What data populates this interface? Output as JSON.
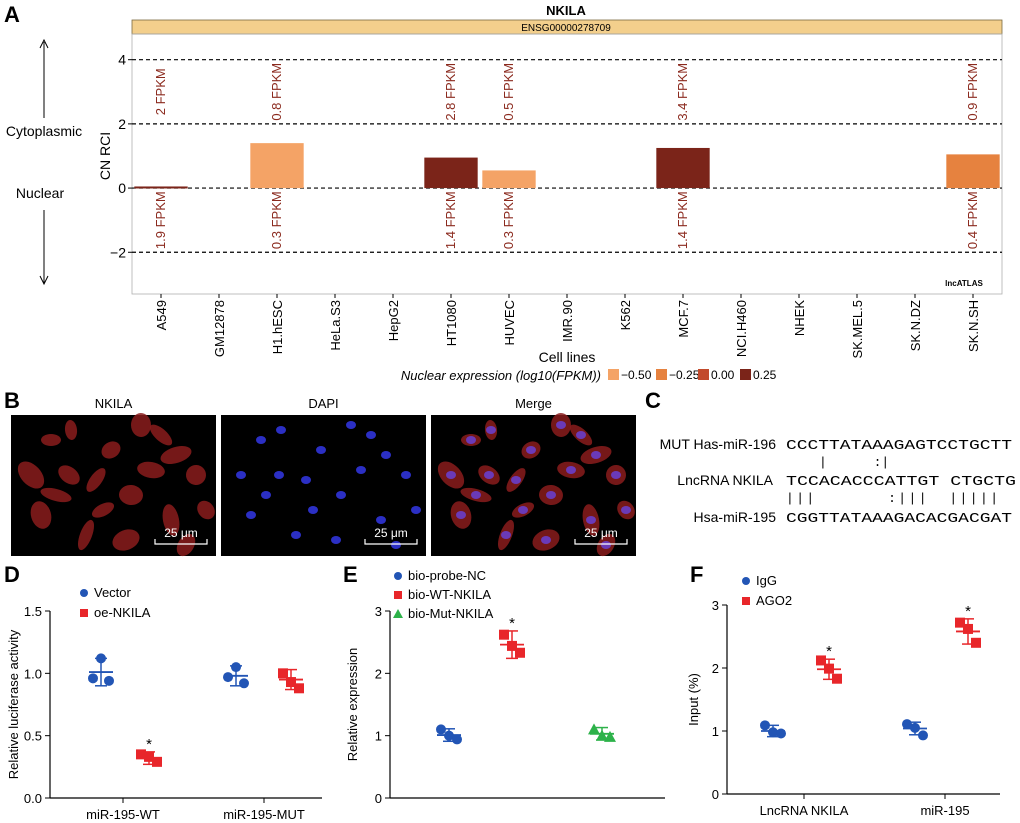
{
  "panels": {
    "a": "A",
    "b": "B",
    "c": "C",
    "d": "D",
    "e": "E",
    "f": "F"
  },
  "panel_a": {
    "title": "NKILA",
    "ensembl": "ENSG00000278709",
    "side_top": "Cytoplasmic",
    "side_bottom": "Nuclear",
    "watermark": "lncATLAS",
    "legend_title": "Nuclear expression (log10(FPKM))",
    "legend": [
      {
        "label": "−0.50",
        "color": "#f4a366"
      },
      {
        "label": "−0.25",
        "color": "#e6823f"
      },
      {
        "label": "0.00",
        "color": "#c24a2c"
      },
      {
        "label": "0.25",
        "color": "#7b2419"
      }
    ]
  },
  "panel_b": {
    "labels": [
      "NKILA",
      "DAPI",
      "Merge"
    ],
    "scalebar": "25 μm"
  },
  "panel_c": {
    "rows": [
      {
        "label": "MUT Has-miR-196",
        "seq": "CCCTTATAAAGAGTCCTGCTT"
      },
      {
        "label": "LncRNA NKILA",
        "seq": "TCCACACCCATTGT CTGCTG"
      },
      {
        "label": "Hsa-miR-195",
        "seq": "CGGTTATAAAGACACGACGAT"
      }
    ],
    "pair_top": "|      :|",
    "pair_bottom": "|||       :|||  |||||"
  },
  "chart_data": [
    {
      "id": "A",
      "type": "bar",
      "title": "NKILA",
      "subtitle": "ENSG00000278709",
      "xlabel": "Cell lines",
      "ylabel": "CN RCI",
      "ylim": [
        -3.3,
        4.8
      ],
      "yticks": [
        -2,
        0,
        2,
        4
      ],
      "gridlines": [
        -2,
        0,
        2,
        4
      ],
      "categories": [
        "A549",
        "GM12878",
        "H1.hESC",
        "HeLa.S3",
        "HepG2",
        "HT1080",
        "HUVEC",
        "IMR.90",
        "K562",
        "MCF.7",
        "NCI.H460",
        "NHEK",
        "SK.MEL.5",
        "SK.N.DZ",
        "SK.N.SH"
      ],
      "values": [
        0.05,
        null,
        1.4,
        null,
        null,
        0.95,
        0.55,
        null,
        null,
        1.25,
        null,
        null,
        null,
        null,
        1.05
      ],
      "colors": [
        "#7b2419",
        null,
        "#f4a366",
        null,
        null,
        "#7b2419",
        "#f4a366",
        null,
        null,
        "#7b2419",
        null,
        null,
        null,
        null,
        "#e6823f"
      ],
      "cyto_labels": [
        "2 FPKM",
        null,
        "0.8 FPKM",
        null,
        null,
        "2.8 FPKM",
        "0.5 FPKM",
        null,
        null,
        "3.4 FPKM",
        null,
        null,
        null,
        null,
        "0.9 FPKM"
      ],
      "nuc_labels": [
        "1.9 FPKM",
        null,
        "0.3 FPKM",
        null,
        null,
        "1.4 FPKM",
        "0.3 FPKM",
        null,
        null,
        "1.4 FPKM",
        null,
        null,
        null,
        null,
        "0.4 FPKM"
      ]
    },
    {
      "id": "D",
      "type": "scatter",
      "ylabel": "Relative luciferase activity",
      "ylim": [
        0,
        1.5
      ],
      "yticks": [
        "0.0",
        "0.5",
        "1.0",
        "1.5"
      ],
      "categories": [
        "miR-195-WT",
        "miR-195-MUT"
      ],
      "series": [
        {
          "name": "Vector",
          "marker": "circle",
          "color": "#2255b5",
          "points": [
            [
              0.96,
              1.12,
              0.94
            ],
            [
              0.97,
              1.05,
              0.92
            ]
          ],
          "mean": [
            1.01,
            0.98
          ],
          "sd": [
            0.11,
            0.08
          ]
        },
        {
          "name": "oe-NKILA",
          "marker": "square",
          "color": "#e8262a",
          "points": [
            [
              0.35,
              0.33,
              0.29
            ],
            [
              1.0,
              0.93,
              0.88
            ]
          ],
          "mean": [
            0.32,
            0.95
          ],
          "sd": [
            0.05,
            0.08
          ]
        }
      ],
      "stars": [
        {
          "series": 1,
          "cat": 0,
          "label": "*"
        }
      ]
    },
    {
      "id": "E",
      "type": "scatter",
      "ylabel": "Relative expression",
      "ylim": [
        0,
        3
      ],
      "yticks": [
        "0",
        "1",
        "2",
        "3"
      ],
      "categories": [
        "bio-probe-NC",
        "bio-WT-NKILA",
        "bio-Mut-NKILA"
      ],
      "series": [
        {
          "name": "bio-probe-NC",
          "marker": "circle",
          "color": "#2255b5",
          "points": [
            [
              1.1,
              1.0,
              0.94
            ]
          ],
          "mean": [
            1.01
          ],
          "sd": [
            0.1
          ]
        },
        {
          "name": "bio-WT-NKILA",
          "marker": "square",
          "color": "#e8262a",
          "points": [
            [
              2.62,
              2.44,
              2.33
            ]
          ],
          "mean": [
            2.46
          ],
          "sd": [
            0.22
          ]
        },
        {
          "name": "bio-Mut-NKILA",
          "marker": "triangle",
          "color": "#2db24a",
          "points": [
            [
              1.1,
              1.0,
              0.98
            ]
          ],
          "mean": [
            1.03
          ],
          "sd": [
            0.1
          ]
        }
      ],
      "stars": [
        {
          "series": 1,
          "cat": 0,
          "label": "*"
        }
      ]
    },
    {
      "id": "F",
      "type": "scatter",
      "ylabel": "Input (%)",
      "ylim": [
        0,
        3
      ],
      "yticks": [
        "0",
        "1",
        "2",
        "3"
      ],
      "categories": [
        "LncRNA NKILA",
        "miR-195"
      ],
      "series": [
        {
          "name": "IgG",
          "marker": "circle",
          "color": "#2255b5",
          "points": [
            [
              1.09,
              0.98,
              0.96
            ],
            [
              1.11,
              1.05,
              0.93
            ]
          ],
          "mean": [
            1.0,
            1.04
          ],
          "sd": [
            0.09,
            0.1
          ]
        },
        {
          "name": "AGO2",
          "marker": "square",
          "color": "#e8262a",
          "points": [
            [
              2.12,
              1.99,
              1.83
            ],
            [
              2.72,
              2.62,
              2.4
            ]
          ],
          "mean": [
            1.98,
            2.58
          ],
          "sd": [
            0.16,
            0.2
          ]
        }
      ],
      "stars": [
        {
          "series": 1,
          "cat": 0,
          "label": "*"
        },
        {
          "series": 1,
          "cat": 1,
          "label": "*"
        }
      ]
    }
  ]
}
